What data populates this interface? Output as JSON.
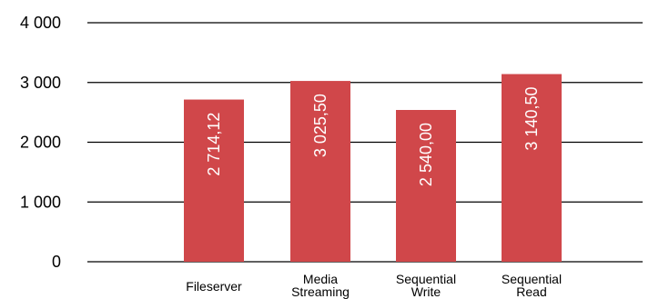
{
  "chart_data": {
    "type": "bar",
    "categories": [
      [
        "Fileserver"
      ],
      [
        "Media",
        "Streaming"
      ],
      [
        "Sequential",
        "Write"
      ],
      [
        "Sequential",
        "Read"
      ]
    ],
    "values": [
      2714.12,
      3025.5,
      2540.0,
      3140.5
    ],
    "data_labels": [
      "2 714,12",
      "3 025,50",
      "2 540,00",
      "3 140,50"
    ],
    "y_ticks": [
      0,
      1000,
      2000,
      3000,
      4000
    ],
    "y_tick_labels": [
      "0",
      "1 000",
      "2 000",
      "3 000",
      "4 000"
    ],
    "ylim": [
      0,
      4000
    ],
    "grid": true,
    "bar_color": "#d0474a",
    "title": "",
    "xlabel": "",
    "ylabel": ""
  }
}
